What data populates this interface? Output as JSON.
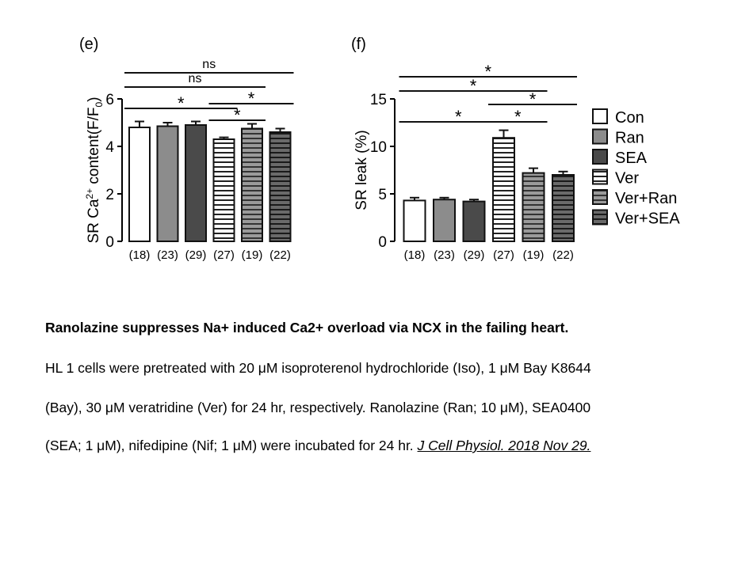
{
  "chart_data": [
    {
      "type": "bar",
      "panel_label": "(e)",
      "ylabel_parts": {
        "pre": "SR Ca",
        "sup": "2+",
        "mid": " content(F/F",
        "sub": "0",
        "post": ")"
      },
      "categories": [
        "Con",
        "Ran",
        "SEA",
        "Ver",
        "Ver+Ran",
        "Ver+SEA"
      ],
      "n_labels": [
        "(18)",
        "(23)",
        "(29)",
        "(27)",
        "(19)",
        "(22)"
      ],
      "values": [
        4.8,
        4.85,
        4.9,
        4.3,
        4.75,
        4.6
      ],
      "errors": [
        0.25,
        0.15,
        0.15,
        0.08,
        0.2,
        0.15
      ],
      "ylim": [
        0,
        6
      ],
      "yticks": [
        "0",
        "2",
        "4",
        "6"
      ],
      "significance": [
        {
          "from": 0,
          "to": 5,
          "label": "ns",
          "level": 4
        },
        {
          "from": 0,
          "to": 4,
          "label": "ns",
          "level": 3
        },
        {
          "from": 0,
          "to": 3,
          "label": "*",
          "level": 1
        },
        {
          "from": 3,
          "to": 5,
          "label": "*",
          "level": 2
        },
        {
          "from": 3,
          "to": 4,
          "label": "*",
          "level": 0
        }
      ]
    },
    {
      "type": "bar",
      "panel_label": "(f)",
      "ylabel": "SR leak (%)",
      "categories": [
        "Con",
        "Ran",
        "SEA",
        "Ver",
        "Ver+Ran",
        "Ver+SEA"
      ],
      "n_labels": [
        "(18)",
        "(23)",
        "(29)",
        "(27)",
        "(19)",
        "(22)"
      ],
      "values": [
        4.3,
        4.4,
        4.2,
        10.9,
        7.2,
        7.0
      ],
      "errors": [
        0.3,
        0.2,
        0.2,
        0.8,
        0.5,
        0.35
      ],
      "ylim": [
        0,
        15
      ],
      "yticks": [
        "0",
        "5",
        "10",
        "15"
      ],
      "significance": [
        {
          "from": 0,
          "to": 5,
          "label": "*",
          "level": 4
        },
        {
          "from": 0,
          "to": 4,
          "label": "*",
          "level": 3
        },
        {
          "from": 0,
          "to": 3,
          "label": "*",
          "level": 1
        },
        {
          "from": 3,
          "to": 5,
          "label": "*",
          "level": 2
        },
        {
          "from": 3,
          "to": 4,
          "label": "*",
          "level": 0
        }
      ]
    }
  ],
  "legend": {
    "placement": "right",
    "items": [
      "Con",
      "Ran",
      "SEA",
      "Ver",
      "Ver+Ran",
      "Ver+SEA"
    ]
  },
  "bar_styles": [
    {
      "fill": "#ffffff",
      "stripes": false
    },
    {
      "fill": "#8c8c8c",
      "stripes": false
    },
    {
      "fill": "#4a4a4a",
      "stripes": false
    },
    {
      "fill": "#ffffff",
      "stripes": true
    },
    {
      "fill": "#8c8c8c",
      "stripes": true
    },
    {
      "fill": "#4a4a4a",
      "stripes": true
    }
  ],
  "caption": {
    "title": "Ranolazine suppresses Na+ induced Ca2+ overload via NCX in the failing heart.",
    "line1": "HL 1 cells were pretreated with 20 μM isoproterenol hydrochloride (Iso), 1 μM Bay K8644",
    "line2": "(Bay), 30 μM veratridine (Ver) for 24 hr, respectively. Ranolazine (Ran; 10 μM), SEA0400",
    "line3": "(SEA; 1 μM), nifedipine (Nif; 1 μM) were incubated for 24 hr.",
    "citation": "J Cell Physiol. 2018 Nov 29."
  }
}
